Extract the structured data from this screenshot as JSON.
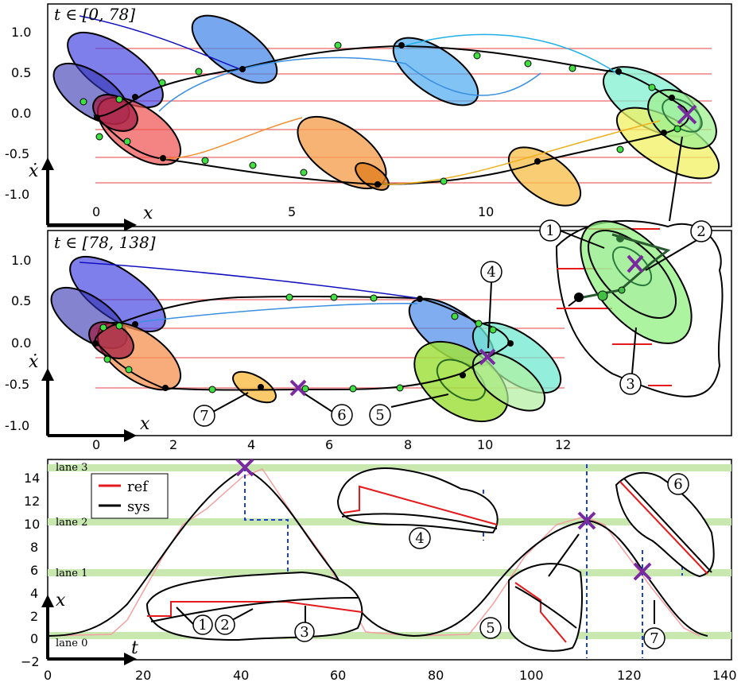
{
  "chart_data": [
    {
      "panel": "top",
      "type": "scatter",
      "title": "t ∈ [0, 78]",
      "xlabel": "x",
      "ylabel": "ẋ",
      "xlim": [
        -1.2,
        16.2
      ],
      "ylim": [
        -1.3,
        1.3
      ],
      "xticks": [
        "0",
        "5",
        "10"
      ],
      "yticks": [
        "1.0",
        "0.5",
        "0.0",
        "-0.5",
        "-1.0"
      ],
      "lane_lines_y": [
        0.8,
        0.5,
        0.18,
        -0.18,
        -0.5,
        -0.82
      ],
      "waypoints": [
        [
          1.0,
          -0.05
        ],
        [
          0.4,
          -0.1
        ],
        [
          1.6,
          -0.42
        ],
        [
          4.0,
          -0.55
        ],
        [
          7.5,
          -0.75
        ],
        [
          11.5,
          -0.55
        ],
        [
          14.2,
          -0.2
        ],
        [
          14.8,
          -0.05
        ],
        [
          12.5,
          0.55
        ],
        [
          8.0,
          0.8
        ],
        [
          3.5,
          0.55
        ],
        [
          1.2,
          0.25
        ]
      ],
      "annotations": [
        "1",
        "2",
        "3"
      ]
    },
    {
      "panel": "middle",
      "type": "scatter",
      "title": "t ∈ [78, 138]",
      "xlabel": "x",
      "ylabel": "ẋ",
      "xlim": [
        -1.2,
        16.2
      ],
      "ylim": [
        -1.1,
        1.3
      ],
      "xticks": [
        "0",
        "2",
        "4",
        "6",
        "8",
        "10",
        "12"
      ],
      "yticks": [
        "1.0",
        "0.5",
        "0.0",
        "-0.5",
        "-1.0"
      ],
      "waypoints": [
        [
          0.0,
          -0.1
        ],
        [
          0.6,
          -0.35
        ],
        [
          1.9,
          -0.5
        ],
        [
          4.2,
          -0.52
        ],
        [
          6.3,
          -0.55
        ],
        [
          8.8,
          -0.45
        ],
        [
          10.0,
          -0.2
        ],
        [
          10.3,
          0.05
        ],
        [
          8.2,
          0.53
        ],
        [
          5.0,
          0.55
        ],
        [
          1.5,
          0.45
        ],
        [
          0.5,
          0.15
        ]
      ],
      "crosses": [
        [
          5.2,
          -0.52
        ],
        [
          9.9,
          -0.2
        ]
      ],
      "annotations": [
        "4",
        "5",
        "6",
        "7"
      ]
    },
    {
      "panel": "bottom",
      "type": "line",
      "xlabel": "t",
      "ylabel": "x",
      "xlim": [
        0,
        140
      ],
      "ylim": [
        -2,
        16
      ],
      "xticks": [
        "0",
        "20",
        "40",
        "60",
        "80",
        "100",
        "120",
        "140"
      ],
      "yticks": [
        "−2",
        "0",
        "2",
        "4",
        "6",
        "8",
        "10",
        "12",
        "14"
      ],
      "lanes": [
        {
          "label": "lane 0",
          "y": 0
        },
        {
          "label": "lane 1",
          "y": 5.8
        },
        {
          "label": "lane 2",
          "y": 10.3
        },
        {
          "label": "lane 3",
          "y": 15
        }
      ],
      "series": [
        {
          "name": "ref",
          "color": "#e41a1c"
        },
        {
          "name": "sys",
          "color": "#000000"
        }
      ],
      "sys_curve": [
        [
          0,
          0
        ],
        [
          10,
          0.5
        ],
        [
          20,
          4
        ],
        [
          30,
          10.5
        ],
        [
          40,
          15
        ],
        [
          50,
          11
        ],
        [
          60,
          4
        ],
        [
          70,
          0.2
        ],
        [
          78,
          0
        ],
        [
          86,
          3
        ],
        [
          95,
          8
        ],
        [
          105,
          10.3
        ],
        [
          110,
          10
        ],
        [
          115,
          8
        ],
        [
          122,
          5.5
        ],
        [
          130,
          1.5
        ],
        [
          137,
          0
        ]
      ],
      "crosses": [
        [
          40,
          15
        ],
        [
          110,
          10.2
        ],
        [
          121,
          5.8
        ]
      ],
      "annotations": [
        "1",
        "2",
        "3",
        "4",
        "5",
        "6",
        "7"
      ]
    }
  ],
  "legend": {
    "ref": "ref",
    "sys": "sys"
  }
}
